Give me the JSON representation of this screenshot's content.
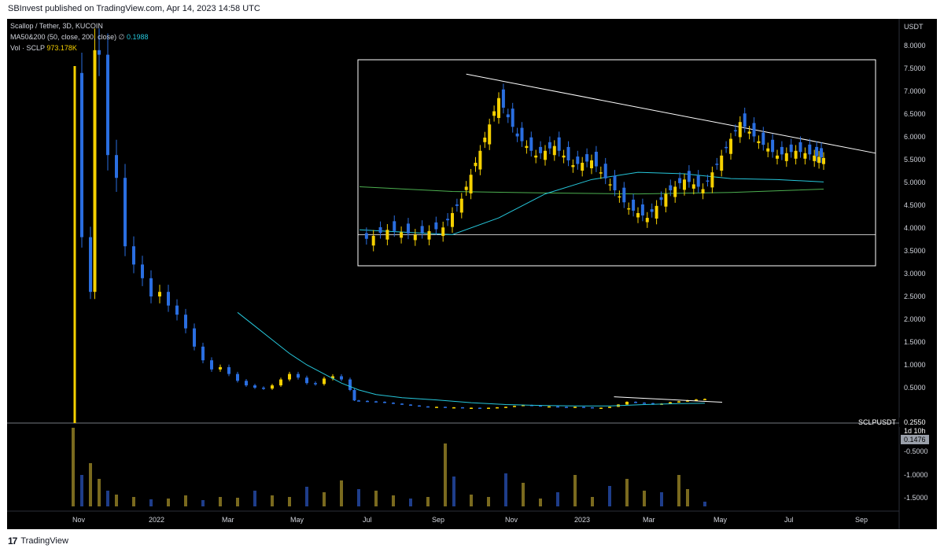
{
  "header": {
    "published_text": "SBInvest published on TradingView.com, Apr 14, 2023 14:58 UTC"
  },
  "legend": {
    "symbol_line": "Scallop / Tether, 3D, KUCOIN",
    "ma_label": "MA50&200 (50, close, 200, close)",
    "ma_icon": "∅",
    "ma_value": "0.1988",
    "vol_label": "Vol · SCLP",
    "vol_value": "973.178K"
  },
  "footer": {
    "logo_mark": "17",
    "brand": "TradingView"
  },
  "colors": {
    "background": "#000000",
    "candle_up": "#f5d000",
    "candle_down": "#2a6ee0",
    "volume_up": "#7a6a1e",
    "volume_down": "#1e3d8a",
    "ma50": "#26c6da",
    "ma200": "#4caf50",
    "trendline": "#ffffff"
  },
  "chart_data": {
    "type": "candlestick",
    "symbol": "SCLPUSDT",
    "exchange": "KUCOIN",
    "interval": "3D",
    "y_axis_unit": "USDT",
    "current_price": "0.2550",
    "countdown": "1d 10h",
    "ma_tag": "0.1476",
    "price_ticks": [
      "8.0000",
      "7.5000",
      "7.0000",
      "6.5000",
      "6.0000",
      "5.5000",
      "5.0000",
      "4.5000",
      "4.0000",
      "3.5000",
      "3.0000",
      "2.5000",
      "2.0000",
      "1.5000",
      "1.0000",
      "0.5000"
    ],
    "volume_ticks": [
      "-0.5000",
      "-1.0000",
      "-1.5000"
    ],
    "x_ticks": [
      "Nov",
      "2022",
      "Mar",
      "May",
      "Jul",
      "Sep",
      "Nov",
      "2023",
      "Mar",
      "May",
      "Jul",
      "Sep"
    ],
    "ylim": [
      0.0,
      8.3
    ],
    "price_path": [
      [
        0,
        7.4
      ],
      [
        2,
        3.8
      ],
      [
        4,
        2.6
      ],
      [
        5,
        7.9
      ],
      [
        6,
        7.8
      ],
      [
        8,
        5.6
      ],
      [
        10,
        5.1
      ],
      [
        12,
        3.6
      ],
      [
        14,
        3.2
      ],
      [
        16,
        2.9
      ],
      [
        18,
        2.5
      ],
      [
        20,
        2.6
      ],
      [
        22,
        2.3
      ],
      [
        24,
        2.1
      ],
      [
        26,
        1.8
      ],
      [
        28,
        1.4
      ],
      [
        30,
        1.1
      ],
      [
        32,
        0.9
      ],
      [
        34,
        0.95
      ],
      [
        36,
        0.8
      ],
      [
        38,
        0.65
      ],
      [
        40,
        0.55
      ],
      [
        42,
        0.5
      ],
      [
        44,
        0.48
      ],
      [
        46,
        0.55
      ],
      [
        48,
        0.68
      ],
      [
        50,
        0.8
      ],
      [
        52,
        0.72
      ],
      [
        54,
        0.6
      ],
      [
        56,
        0.58
      ],
      [
        58,
        0.7
      ],
      [
        60,
        0.75
      ],
      [
        62,
        0.68
      ],
      [
        64,
        0.45
      ],
      [
        65,
        0.22
      ],
      [
        66,
        0.21
      ],
      [
        68,
        0.2
      ],
      [
        70,
        0.19
      ],
      [
        72,
        0.17
      ],
      [
        74,
        0.15
      ],
      [
        76,
        0.13
      ],
      [
        78,
        0.11
      ],
      [
        80,
        0.09
      ],
      [
        82,
        0.08
      ],
      [
        84,
        0.08
      ],
      [
        86,
        0.07
      ],
      [
        88,
        0.07
      ],
      [
        90,
        0.06
      ],
      [
        92,
        0.06
      ],
      [
        94,
        0.05
      ],
      [
        96,
        0.06
      ],
      [
        98,
        0.07
      ],
      [
        100,
        0.08
      ],
      [
        102,
        0.1
      ],
      [
        104,
        0.12
      ],
      [
        106,
        0.11
      ],
      [
        108,
        0.09
      ],
      [
        110,
        0.09
      ],
      [
        112,
        0.08
      ],
      [
        114,
        0.07
      ],
      [
        116,
        0.08
      ],
      [
        118,
        0.07
      ],
      [
        120,
        0.06
      ],
      [
        122,
        0.06
      ],
      [
        124,
        0.08
      ],
      [
        126,
        0.13
      ],
      [
        128,
        0.19
      ],
      [
        130,
        0.17
      ],
      [
        132,
        0.16
      ],
      [
        134,
        0.13
      ],
      [
        136,
        0.15
      ],
      [
        138,
        0.18
      ],
      [
        140,
        0.2
      ],
      [
        142,
        0.22
      ],
      [
        144,
        0.24
      ],
      [
        146,
        0.25
      ]
    ],
    "ma50_path": [
      [
        38,
        2.15
      ],
      [
        42,
        1.85
      ],
      [
        46,
        1.55
      ],
      [
        50,
        1.25
      ],
      [
        54,
        1.0
      ],
      [
        58,
        0.8
      ],
      [
        62,
        0.6
      ],
      [
        66,
        0.45
      ],
      [
        70,
        0.35
      ],
      [
        76,
        0.28
      ],
      [
        84,
        0.23
      ],
      [
        92,
        0.17
      ],
      [
        100,
        0.13
      ],
      [
        108,
        0.11
      ],
      [
        116,
        0.1
      ],
      [
        124,
        0.1
      ],
      [
        132,
        0.13
      ],
      [
        140,
        0.15
      ],
      [
        146,
        0.16
      ]
    ],
    "volume": [
      [
        0,
        1.0
      ],
      [
        2,
        0.4
      ],
      [
        4,
        0.55
      ],
      [
        6,
        0.35
      ],
      [
        8,
        0.2
      ],
      [
        10,
        0.15
      ],
      [
        14,
        0.12
      ],
      [
        18,
        0.09
      ],
      [
        22,
        0.1
      ],
      [
        26,
        0.14
      ],
      [
        30,
        0.08
      ],
      [
        34,
        0.12
      ],
      [
        38,
        0.11
      ],
      [
        42,
        0.2
      ],
      [
        46,
        0.14
      ],
      [
        50,
        0.12
      ],
      [
        54,
        0.25
      ],
      [
        58,
        0.18
      ],
      [
        62,
        0.33
      ],
      [
        66,
        0.22
      ],
      [
        70,
        0.2
      ],
      [
        74,
        0.14
      ],
      [
        78,
        0.1
      ],
      [
        82,
        0.12
      ],
      [
        86,
        0.8
      ],
      [
        88,
        0.38
      ],
      [
        92,
        0.15
      ],
      [
        96,
        0.12
      ],
      [
        100,
        0.42
      ],
      [
        104,
        0.3
      ],
      [
        108,
        0.1
      ],
      [
        112,
        0.18
      ],
      [
        116,
        0.4
      ],
      [
        120,
        0.12
      ],
      [
        124,
        0.26
      ],
      [
        128,
        0.35
      ],
      [
        132,
        0.2
      ],
      [
        136,
        0.18
      ],
      [
        140,
        0.4
      ],
      [
        142,
        0.22
      ],
      [
        146,
        0.06
      ]
    ],
    "inset": {
      "type": "candlestick-zoom",
      "support_level": 4.45,
      "trendline": [
        [
          0,
          7.8
        ],
        [
          100,
          6.2
        ]
      ],
      "ma50_path": [
        [
          0,
          4.55
        ],
        [
          10,
          4.5
        ],
        [
          20,
          4.45
        ],
        [
          30,
          4.8
        ],
        [
          40,
          5.3
        ],
        [
          50,
          5.6
        ],
        [
          60,
          5.75
        ],
        [
          70,
          5.72
        ],
        [
          80,
          5.62
        ],
        [
          90,
          5.6
        ],
        [
          100,
          5.55
        ]
      ],
      "ma200_path": [
        [
          0,
          5.45
        ],
        [
          20,
          5.35
        ],
        [
          40,
          5.32
        ],
        [
          60,
          5.3
        ],
        [
          80,
          5.33
        ],
        [
          100,
          5.4
        ]
      ],
      "close_path": [
        [
          0,
          4.3
        ],
        [
          6,
          4.55
        ],
        [
          12,
          4.45
        ],
        [
          18,
          4.6
        ],
        [
          22,
          5.2
        ],
        [
          26,
          6.2
        ],
        [
          30,
          7.3
        ],
        [
          34,
          6.5
        ],
        [
          38,
          6.1
        ],
        [
          42,
          6.3
        ],
        [
          46,
          5.9
        ],
        [
          50,
          6.0
        ],
        [
          54,
          5.5
        ],
        [
          58,
          5.0
        ],
        [
          62,
          4.8
        ],
        [
          66,
          5.3
        ],
        [
          70,
          5.6
        ],
        [
          74,
          5.4
        ],
        [
          78,
          6.1
        ],
        [
          82,
          6.8
        ],
        [
          86,
          6.4
        ],
        [
          90,
          6.1
        ],
        [
          94,
          6.2
        ],
        [
          98,
          6.1
        ],
        [
          100,
          6.05
        ]
      ]
    }
  }
}
